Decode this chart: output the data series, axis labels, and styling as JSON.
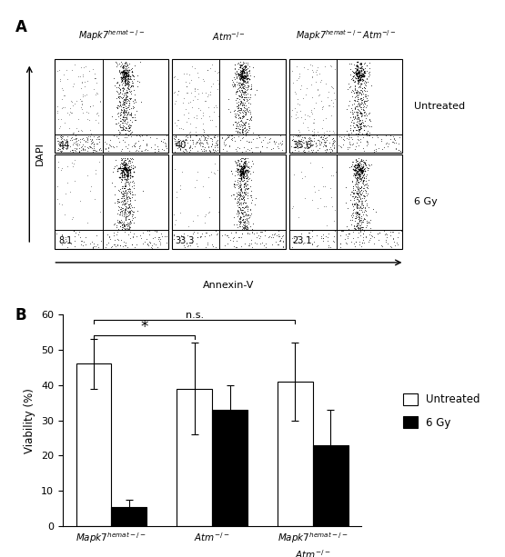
{
  "panel_A_label": "A",
  "panel_B_label": "B",
  "col_labels": [
    "Mapk7$^{hemat-/-}$",
    "Atm$^{-/-}$",
    "Mapk7$^{hemat-/-}$Atm$^{-/-}$"
  ],
  "row_labels": [
    "Untreated",
    "6 Gy"
  ],
  "flow_numbers": [
    [
      "44",
      "40",
      "35.6"
    ],
    [
      "8.1",
      "33.3",
      "23.1"
    ]
  ],
  "dapi_label": "DAPI",
  "annexin_label": "Annexin-V",
  "untreated_values": [
    46,
    39,
    41
  ],
  "untreated_errors": [
    7,
    13,
    11
  ],
  "gy6_values": [
    5.5,
    33,
    23
  ],
  "gy6_errors": [
    2,
    7,
    10
  ],
  "ylabel": "Viability (%)",
  "ylim": [
    0,
    60
  ],
  "yticks": [
    0,
    10,
    20,
    30,
    40,
    50,
    60
  ],
  "legend_labels": [
    "Untreated",
    "6 Gy"
  ],
  "bar_width": 0.35,
  "group_positions": [
    0,
    1,
    2
  ],
  "background_color": "#ffffff"
}
